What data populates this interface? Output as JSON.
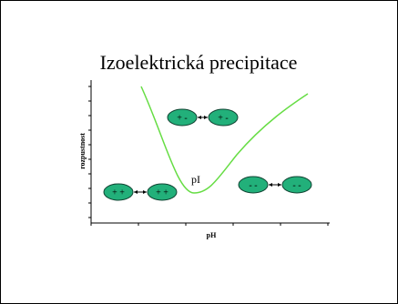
{
  "title": "Izoelektrická precipitace",
  "y_axis_label": "rozpustnost",
  "x_axis_label": "pH",
  "annotation": "pI",
  "molecule_pairs": [
    {
      "left": "+ -",
      "right": "+ -"
    },
    {
      "left": "+ +",
      "right": "+ +"
    },
    {
      "left": "- -",
      "right": "- -"
    }
  ]
}
